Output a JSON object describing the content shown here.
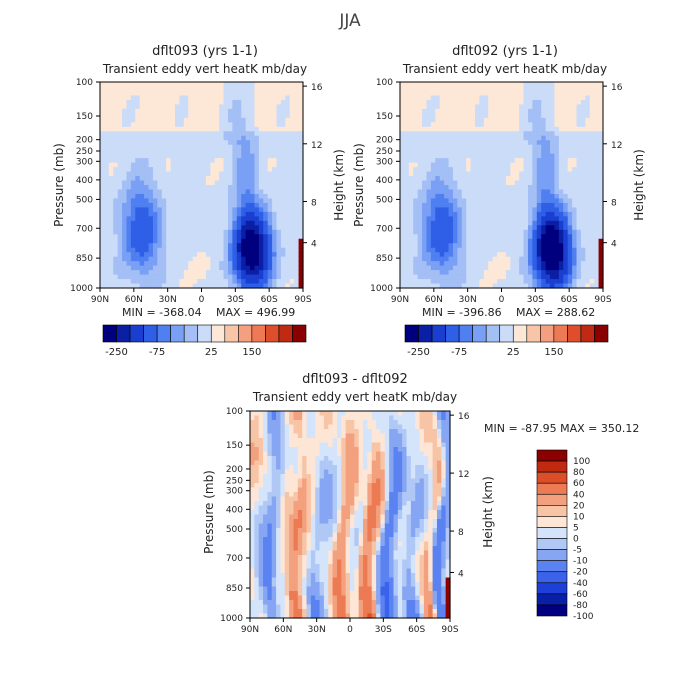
{
  "figure": {
    "title": "JJA"
  },
  "colors": {
    "full_scale": [
      "#00007f",
      "#0a1fa3",
      "#1a3fd0",
      "#2f5fe6",
      "#4f7ff0",
      "#7aa0f5",
      "#a3bff5",
      "#cbdcf8",
      "#fde8d8",
      "#f8c5a8",
      "#f4a080",
      "#ee7a55",
      "#de4e2d",
      "#c02a12",
      "#8a0000"
    ],
    "diff_scale": [
      "#000080",
      "#0a1fa8",
      "#1e40d8",
      "#3a62ea",
      "#5a82f0",
      "#86a6f3",
      "#b0c8f6",
      "#d4e4fa",
      "#fde6d6",
      "#f8c4a6",
      "#f3a07e",
      "#ec7a52",
      "#dc4e2a",
      "#bf2a10",
      "#8b0000"
    ]
  },
  "chart_data": [
    {
      "type": "heatmap",
      "title": "dflt093 (yrs 1-1)",
      "subtitle": "Transient eddy vert heatK mb/day",
      "ylabel": "Pressure (mb)",
      "ylabel_right": "Height (km)",
      "x_ticks": [
        "90N",
        "60N",
        "30N",
        "0",
        "30S",
        "60S",
        "90S"
      ],
      "y_ticks": [
        "100",
        "150",
        "200",
        "250",
        "300",
        "400",
        "500",
        "700",
        "850",
        "1000"
      ],
      "y_right_ticks": [
        "16",
        "12",
        "8",
        "4"
      ],
      "ylim": [
        1000,
        100
      ],
      "stats": {
        "min": "MIN = -368.04",
        "max": "MAX = 496.99"
      },
      "colorbar_labels": [
        "-250",
        "-75",
        "25",
        "150"
      ]
    },
    {
      "type": "heatmap",
      "title": "dflt092 (yrs 1-1)",
      "subtitle": "Transient eddy vert heatK mb/day",
      "ylabel": "Pressure (mb)",
      "ylabel_right": "Height (km)",
      "x_ticks": [
        "90N",
        "60N",
        "30N",
        "0",
        "30S",
        "60S",
        "90S"
      ],
      "y_ticks": [
        "100",
        "150",
        "200",
        "250",
        "300",
        "400",
        "500",
        "700",
        "850",
        "1000"
      ],
      "y_right_ticks": [
        "16",
        "12",
        "8",
        "4"
      ],
      "ylim": [
        1000,
        100
      ],
      "stats": {
        "min": "MIN = -396.86",
        "max": "MAX = 288.62"
      },
      "colorbar_labels": [
        "-250",
        "-75",
        "25",
        "150"
      ]
    },
    {
      "type": "heatmap",
      "title": "dflt093 - dflt092",
      "subtitle": "Transient eddy vert heatK mb/day",
      "ylabel": "Pressure (mb)",
      "ylabel_right": "Height (km)",
      "x_ticks": [
        "90N",
        "60N",
        "30N",
        "0",
        "30S",
        "60S",
        "90S"
      ],
      "y_ticks": [
        "100",
        "150",
        "200",
        "250",
        "300",
        "400",
        "500",
        "700",
        "850",
        "1000"
      ],
      "y_right_ticks": [
        "16",
        "12",
        "8",
        "4"
      ],
      "ylim": [
        1000,
        100
      ],
      "stats": {
        "text": "MIN = -87.95   MAX = 350.12"
      },
      "colorbar_labels": [
        "100",
        "80",
        "60",
        "40",
        "20",
        "10",
        "5",
        "0",
        "-5",
        "-10",
        "-20",
        "-40",
        "-60",
        "-80",
        "-100"
      ]
    }
  ]
}
